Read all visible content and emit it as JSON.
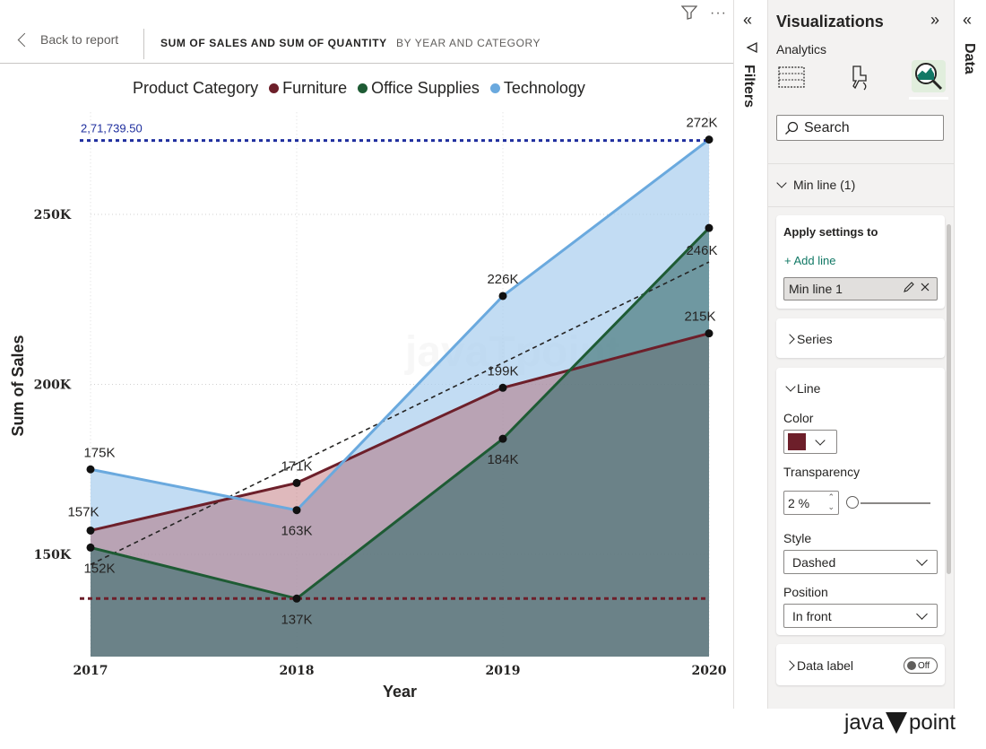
{
  "header": {
    "back_label": "Back to report",
    "title_main": "SUM OF SALES AND SUM OF QUANTITY",
    "title_sub": "BY YEAR AND CATEGORY",
    "more_label": "···"
  },
  "legend": {
    "title": "Product Category",
    "items": [
      {
        "label": "Furniture",
        "color": "#6d1f2a"
      },
      {
        "label": "Office Supplies",
        "color": "#1e5b34"
      },
      {
        "label": "Technology",
        "color": "#6aa9de"
      }
    ]
  },
  "watermark": "javaTpoint",
  "chart_data": {
    "type": "area",
    "categories": [
      "2017",
      "2018",
      "2019",
      "2020"
    ],
    "xlabel": "Year",
    "ylabel": "Sum of Sales",
    "y_ticks": [
      "150K",
      "200K",
      "250K"
    ],
    "ylim": [
      120000,
      280000
    ],
    "series": [
      {
        "name": "Furniture",
        "color": "#6d1f2a",
        "values": [
          157000,
          171000,
          199000,
          215000
        ],
        "labels": [
          "157K",
          "171K",
          "199K",
          "215K"
        ]
      },
      {
        "name": "Office Supplies",
        "color": "#1e5b34",
        "values": [
          152000,
          137000,
          184000,
          246000
        ],
        "labels": [
          "152K",
          "137K",
          "184K",
          "246K"
        ]
      },
      {
        "name": "Technology",
        "color": "#6aa9de",
        "values": [
          175000,
          163000,
          226000,
          272000
        ],
        "labels": [
          "175K",
          "163K",
          "226K",
          "272K"
        ]
      }
    ],
    "max_line": {
      "value": 271739.5,
      "label": "2,71,739.50",
      "color": "#1f2f9e",
      "style": "dotted"
    },
    "min_line": {
      "value": 137000,
      "color": "#6d1f2a",
      "style": "dashed"
    },
    "trend_line": {
      "start": 147000,
      "end": 236000,
      "color": "#252423",
      "style": "dashed"
    }
  },
  "filters": {
    "label": "Filters",
    "collapse_icon": "double-chevron-left-icon"
  },
  "viz_pane": {
    "title": "Visualizations",
    "section": "Analytics",
    "search_placeholder": "Search",
    "min_line_header": "Min line (1)",
    "apply_settings": "Apply settings to",
    "add_line": "+ Add line",
    "selected_line": "Min line 1",
    "series_label": "Series",
    "line_label": "Line",
    "color_label": "Color",
    "color_value": "#6d1f2a",
    "transparency_label": "Transparency",
    "transparency_value": "2 %",
    "transparency_level": 0.02,
    "style_label": "Style",
    "style_value": "Dashed",
    "position_label": "Position",
    "position_value": "In front",
    "data_label": "Data label",
    "data_label_toggle": "Off"
  },
  "data_pane": {
    "label": "Data"
  },
  "brand": {
    "pre": "java",
    "post": "point"
  }
}
